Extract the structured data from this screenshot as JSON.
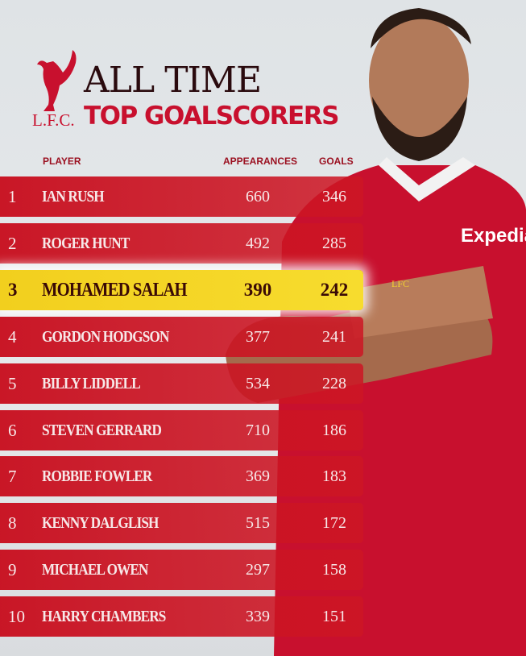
{
  "brand": {
    "logo": "liver-bird-crest",
    "logo_text": "L.F.C.",
    "accent": "#c8102e",
    "highlight": "#f5d628"
  },
  "title": {
    "line1": "ALL TIME",
    "line2": "TOP GOALSCORERS"
  },
  "columns": {
    "player": "PLAYER",
    "appearances": "APPEARANCES",
    "goals": "GOALS"
  },
  "rows": [
    {
      "rank": "1",
      "name": "IAN RUSH",
      "appearances": "660",
      "goals": "346"
    },
    {
      "rank": "2",
      "name": "ROGER HUNT",
      "appearances": "492",
      "goals": "285"
    },
    {
      "rank": "3",
      "name": "MOHAMED SALAH",
      "appearances": "390",
      "goals": "242",
      "highlighted": true
    },
    {
      "rank": "4",
      "name": "GORDON HODGSON",
      "appearances": "377",
      "goals": "241"
    },
    {
      "rank": "5",
      "name": "BILLY LIDDELL",
      "appearances": "534",
      "goals": "228"
    },
    {
      "rank": "6",
      "name": "STEVEN GERRARD",
      "appearances": "710",
      "goals": "186"
    },
    {
      "rank": "7",
      "name": "ROBBIE FOWLER",
      "appearances": "369",
      "goals": "183"
    },
    {
      "rank": "8",
      "name": "KENNY DALGLISH",
      "appearances": "515",
      "goals": "172"
    },
    {
      "rank": "9",
      "name": "MICHAEL OWEN",
      "appearances": "297",
      "goals": "158"
    },
    {
      "rank": "10",
      "name": "HARRY CHAMBERS",
      "appearances": "339",
      "goals": "151"
    }
  ],
  "photo": {
    "sponsor": "Expedia",
    "crest_text": "LFC"
  }
}
